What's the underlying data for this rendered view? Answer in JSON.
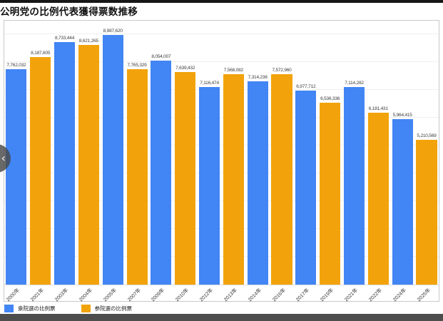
{
  "page": {
    "title": "公明党の比例代表獲得票数推移"
  },
  "carousel": {
    "prev_icon": "‹"
  },
  "chart_data": {
    "type": "bar",
    "title": "公明党の比例代表獲得票数推移",
    "categories": [
      "2000年",
      "2001年",
      "2003年",
      "2004年",
      "2005年",
      "2007年",
      "2009年",
      "2010年",
      "2012年",
      "2013年",
      "2014年",
      "2016年",
      "2017年",
      "2019年",
      "2021年",
      "2022年",
      "2024年",
      "2025年"
    ],
    "values": [
      7762032,
      8187805,
      8733444,
      8621265,
      8987620,
      7765329,
      8054007,
      7639432,
      7116474,
      7568082,
      7314236,
      7572960,
      6977712,
      6536336,
      7114282,
      6181431,
      5964415,
      5210569
    ],
    "value_labels": [
      "7,762,032",
      "8,187,805",
      "8,733,444",
      "8,621,265",
      "8,987,620",
      "7,765,329",
      "8,054,007",
      "7,639,432",
      "7,116,474",
      "7,568,082",
      "7,314,236",
      "7,572,960",
      "6,977,712",
      "6,536,336",
      "7,114,282",
      "6,181,431",
      "5,964,415",
      "5,210,569"
    ],
    "bar_groups": [
      0,
      1,
      0,
      1,
      0,
      1,
      0,
      1,
      0,
      1,
      0,
      1,
      0,
      1,
      0,
      1,
      0,
      1
    ],
    "series": [
      {
        "name": "衆院選の比例票",
        "color": "#4285F4"
      },
      {
        "name": "参院選の比例票",
        "color": "#F2A30B"
      }
    ],
    "xlabel": "",
    "ylabel": "",
    "ylim": [
      0,
      9500000
    ],
    "grid": true,
    "gridline_interval": 1000000,
    "legend_position": "bottom-left",
    "x_tick_rotation_deg": -45,
    "value_labels_shown": true
  },
  "colors": {
    "top_bar": "#161616",
    "bottom_bar": "#4d4d4d",
    "card_border": "#c9c9c9",
    "gridline": "#efefef",
    "axis_line": "#dddddd",
    "value_label_text": "#3c3c3c",
    "axis_label_text": "#333333"
  }
}
